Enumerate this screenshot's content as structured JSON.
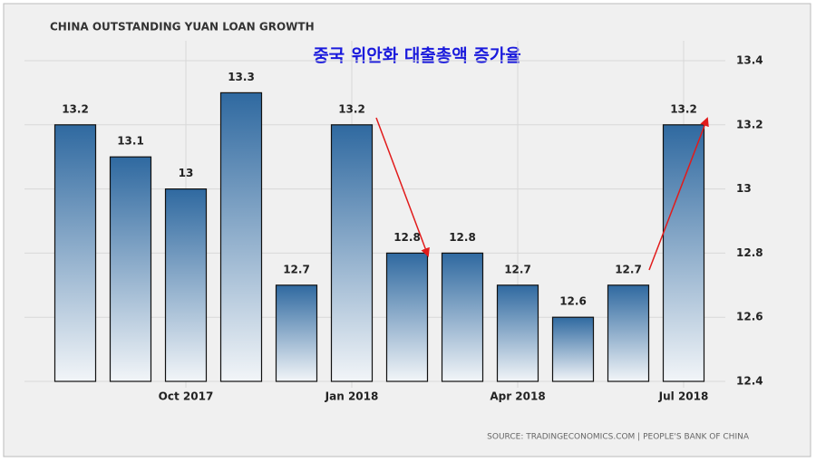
{
  "chart_data": {
    "type": "bar",
    "title": "CHINA OUTSTANDING YUAN LOAN GROWTH",
    "subtitle": "중국 위안화 대출총액 증가율",
    "source": "SOURCE: TRADINGECONOMICS.COM | PEOPLE'S BANK OF CHINA",
    "categories": [
      null,
      null,
      "Oct 2017",
      null,
      null,
      "Jan 2018",
      null,
      null,
      "Apr 2018",
      null,
      null,
      "Jul 2018"
    ],
    "values": [
      13.2,
      13.1,
      13,
      13.3,
      12.7,
      13.2,
      12.8,
      12.8,
      12.7,
      12.6,
      12.7,
      13.2
    ],
    "color": "#2f69a0",
    "ylim": [
      12.4,
      13.4
    ],
    "yticks": [
      12.4,
      12.6,
      12.8,
      13,
      13.2,
      13.4
    ],
    "grid": true
  }
}
